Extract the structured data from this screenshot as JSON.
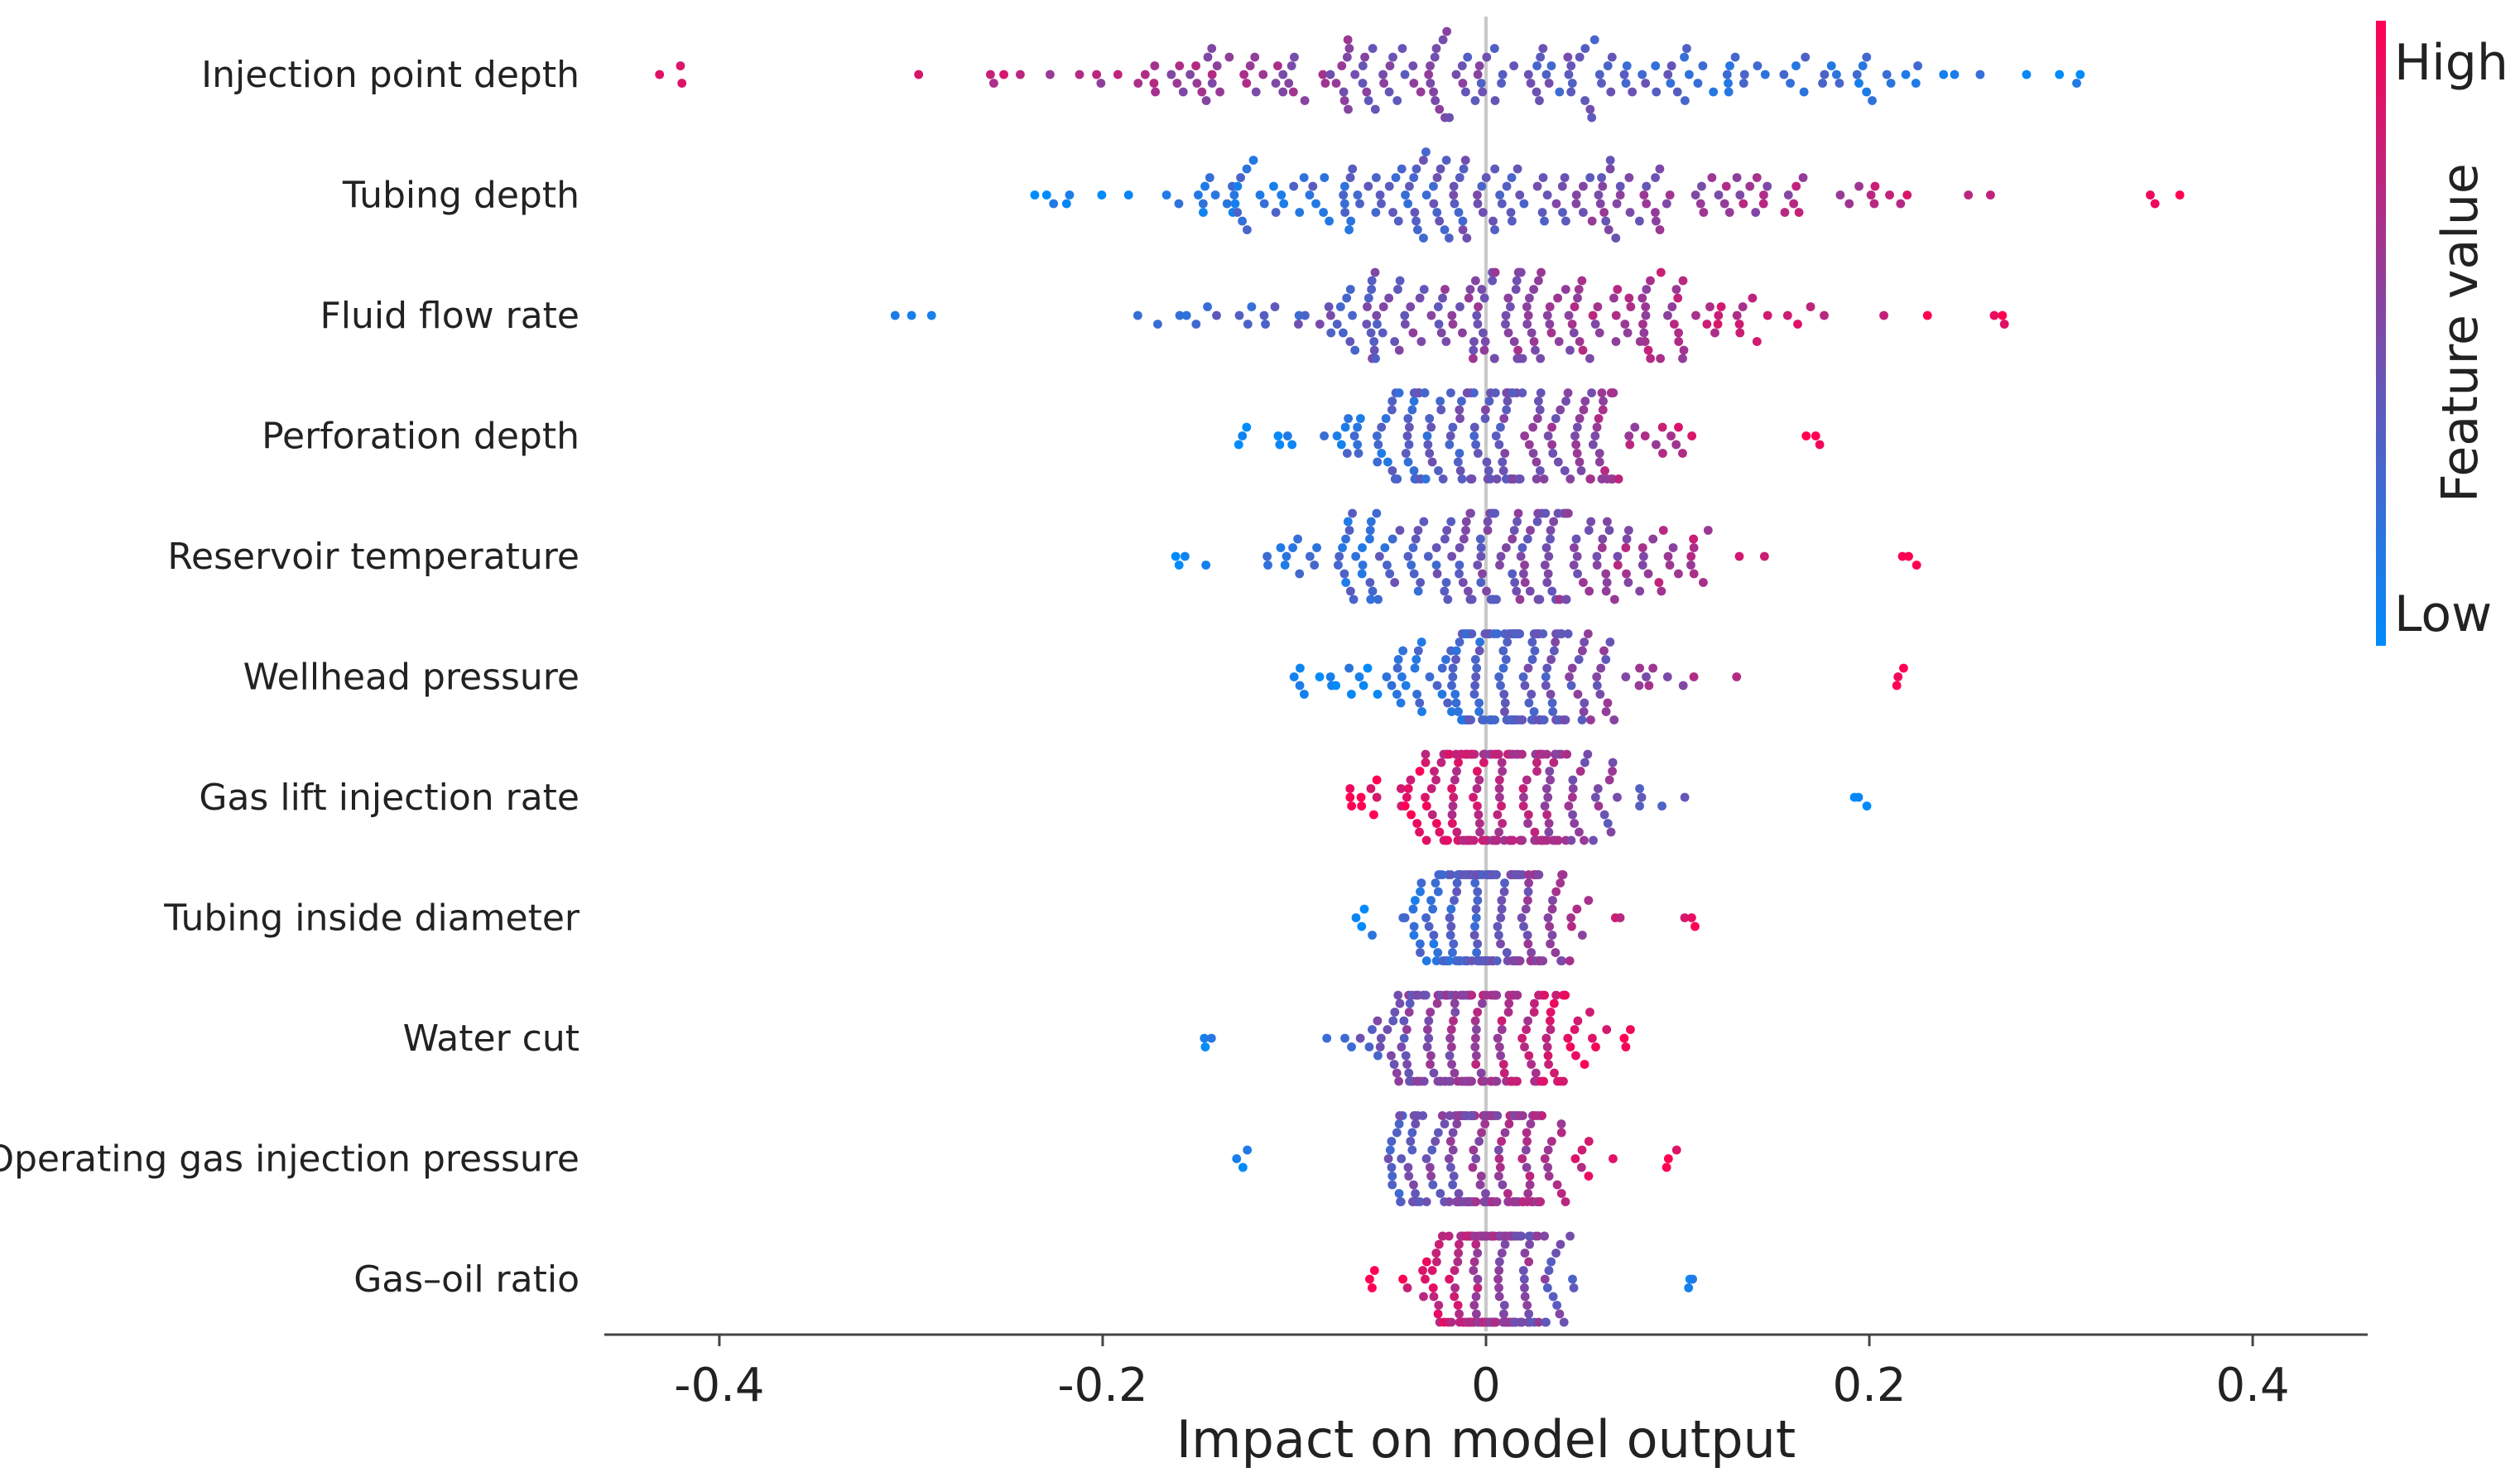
{
  "chart_data": {
    "type": "scatter",
    "subtype": "beeswarm",
    "title": "",
    "xlabel": "Impact on model output",
    "ylabel": "",
    "xlim": [
      -0.46,
      0.46
    ],
    "xticks": [
      -0.4,
      -0.2,
      0,
      0.2,
      0.4
    ],
    "xtick_labels": [
      "-0.4",
      "-0.2",
      "0",
      "0.2",
      "0.4"
    ],
    "grid": false,
    "zero_line": true,
    "features": [
      {
        "name": "Injection point depth",
        "min": -0.44,
        "max": 0.33,
        "trend": "high_negative",
        "spread": 1.0
      },
      {
        "name": "Tubing depth",
        "min": -0.24,
        "max": 0.37,
        "trend": "high_positive",
        "spread": 1.0
      },
      {
        "name": "Fluid flow rate",
        "min": -0.31,
        "max": 0.28,
        "trend": "high_positive",
        "spread": 0.9
      },
      {
        "name": "Perforation depth",
        "min": -0.13,
        "max": 0.18,
        "trend": "high_positive",
        "spread": 0.9
      },
      {
        "name": "Reservoir temperature",
        "min": -0.17,
        "max": 0.23,
        "trend": "high_positive",
        "spread": 0.9
      },
      {
        "name": "Wellhead pressure",
        "min": -0.1,
        "max": 0.22,
        "trend": "high_positive",
        "spread": 0.8
      },
      {
        "name": "Gas lift injection rate",
        "min": -0.07,
        "max": 0.2,
        "trend": "high_negative",
        "spread": 0.8
      },
      {
        "name": "Tubing inside diameter",
        "min": -0.07,
        "max": 0.11,
        "trend": "high_positive",
        "spread": 0.8
      },
      {
        "name": "Water cut",
        "min": -0.15,
        "max": 0.08,
        "trend": "high_positive",
        "spread": 0.8
      },
      {
        "name": "Operating gas injection pressure",
        "min": -0.13,
        "max": 0.1,
        "trend": "high_positive",
        "spread": 0.7
      },
      {
        "name": "Gas–oil ratio",
        "min": -0.06,
        "max": 0.11,
        "trend": "high_negative",
        "spread": 0.7
      }
    ],
    "colorbar": {
      "label": "Feature value",
      "high_label": "High",
      "low_label": "Low",
      "high_color": "#ff0052",
      "mid_color": "#7b4aa8",
      "low_color": "#008bfb"
    }
  }
}
